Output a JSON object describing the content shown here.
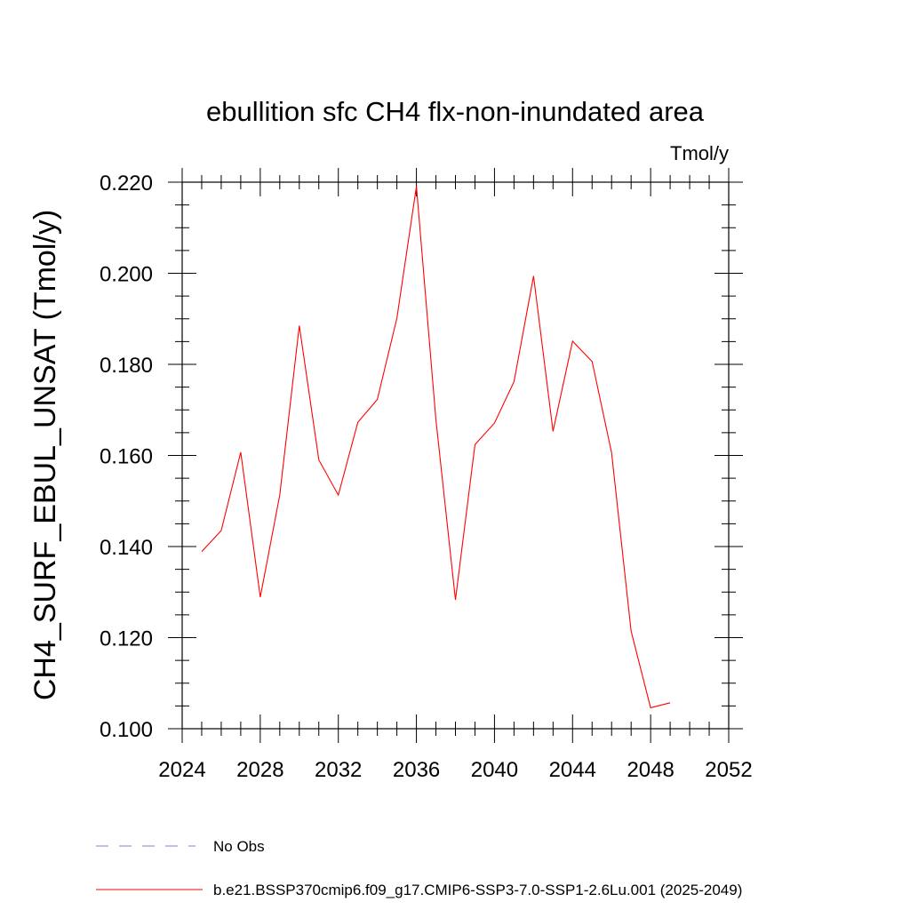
{
  "chart_data": {
    "type": "line",
    "title": "ebullition sfc CH4 flx-non-inundated area",
    "units_label": "Tmol/y",
    "xlabel": "",
    "ylabel": "CH4_SURF_EBUL_UNSAT  (Tmol/y)",
    "xlim": [
      2024,
      2052
    ],
    "ylim": [
      0.1,
      0.22
    ],
    "x_ticks": [
      "2024",
      "2028",
      "2032",
      "2036",
      "2040",
      "2044",
      "2048",
      "2052"
    ],
    "y_ticks": [
      "0.100",
      "0.120",
      "0.140",
      "0.160",
      "0.180",
      "0.200",
      "0.220"
    ],
    "x": [
      2025,
      2026,
      2027,
      2028,
      2029,
      2030,
      2031,
      2032,
      2033,
      2034,
      2035,
      2036,
      2037,
      2038,
      2039,
      2040,
      2041,
      2042,
      2043,
      2044,
      2045,
      2046,
      2047,
      2048,
      2049
    ],
    "series": [
      {
        "name": "b.e21.BSSP370cmip6.f09_g17.CMIP6-SSP3-7.0-SSP1-2.6Lu.001 (2025-2049)",
        "color": "#ff0000",
        "values": [
          0.1389,
          0.1435,
          0.1607,
          0.1289,
          0.1513,
          0.1885,
          0.159,
          0.1513,
          0.1673,
          0.1723,
          0.1901,
          0.2191,
          0.1679,
          0.1283,
          0.1624,
          0.1671,
          0.1762,
          0.1994,
          0.1653,
          0.1851,
          0.1806,
          0.1606,
          0.1214,
          0.1046,
          0.1057
        ]
      }
    ],
    "legend": [
      {
        "label": "No Obs",
        "style": "dashed",
        "color": "#8a7fc4"
      },
      {
        "label": "b.e21.BSSP370cmip6.f09_g17.CMIP6-SSP3-7.0-SSP1-2.6Lu.001 (2025-2049)",
        "style": "solid",
        "color": "#ff0000"
      }
    ],
    "legend_placement": "bottom",
    "grid": false
  }
}
